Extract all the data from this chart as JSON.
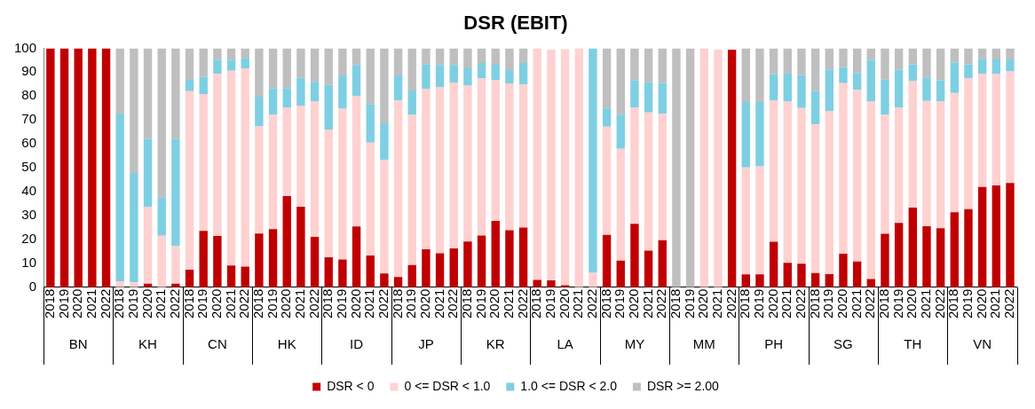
{
  "chart_data": {
    "type": "bar",
    "title": "DSR (EBIT)",
    "stacked": true,
    "legend": "bottom",
    "grid": false,
    "categories": [
      "2018",
      "2019",
      "2020",
      "2021",
      "2022",
      "2018",
      "2019",
      "2020",
      "2021",
      "2022",
      "2018",
      "2019",
      "2020",
      "2021",
      "2022",
      "2018",
      "2019",
      "2020",
      "2021",
      "2022",
      "2018",
      "2019",
      "2020",
      "2021",
      "2022",
      "2018",
      "2019",
      "2020",
      "2021",
      "2022",
      "2018",
      "2019",
      "2020",
      "2021",
      "2022",
      "2018",
      "2019",
      "2020",
      "2021",
      "2022",
      "2018",
      "2019",
      "2020",
      "2021",
      "2022",
      "2018",
      "2019",
      "2020",
      "2021",
      "2022",
      "2018",
      "2019",
      "2020",
      "2021",
      "2022",
      "2018",
      "2019",
      "2020",
      "2021",
      "2022",
      "2018",
      "2019",
      "2020",
      "2021",
      "2022",
      "2018",
      "2019",
      "2020",
      "2021",
      "2022"
    ],
    "annotations": [
      "BN",
      "KH",
      "CN",
      "HK",
      "ID",
      "JP",
      "KR",
      "LA",
      "MY",
      "MM",
      "PH",
      "SG",
      "TH",
      "VN"
    ],
    "ylim": [
      0,
      100
    ],
    "yticks": [
      0,
      10,
      20,
      30,
      40,
      50,
      60,
      70,
      80,
      90,
      100
    ],
    "series": [
      {
        "name": "DSR < 0",
        "color": "#c00000",
        "values": [
          100,
          100,
          100,
          100,
          100,
          0,
          0,
          1.4,
          0,
          1.4,
          7.3,
          23.5,
          21.4,
          9.1,
          8.6,
          22.4,
          24.3,
          38.1,
          33.7,
          21,
          12.5,
          11.6,
          25.4,
          13.2,
          5.7,
          4.2,
          9.2,
          15.8,
          14.2,
          16.2,
          19.1,
          21.6,
          27.7,
          23.8,
          24.9,
          3,
          2.8,
          0.8,
          0,
          0,
          21.9,
          11.1,
          26.5,
          15.3,
          19.6,
          0,
          0,
          0,
          0,
          99.4,
          5.3,
          5.3,
          19,
          10.2,
          9.8,
          5.9,
          5.4,
          14,
          10.7,
          3.4,
          22.3,
          26.9,
          33.3,
          25.5,
          24.7,
          31.3,
          32.6,
          41.9,
          42.6,
          43.6
        ]
      },
      {
        "name": "0 <= DSR < 1.0",
        "color": "#ffd1d1",
        "values": [
          0,
          0,
          0,
          0,
          0,
          2.5,
          2,
          32.3,
          21.5,
          15.7,
          74.7,
          57.3,
          67.9,
          81.5,
          83,
          44.9,
          47.8,
          37,
          42.3,
          56.7,
          53.5,
          63.1,
          54.7,
          47.3,
          47.5,
          73.9,
          62.9,
          67.2,
          69.4,
          69.5,
          65.3,
          65.7,
          59.1,
          61.5,
          59.9,
          97,
          96.6,
          98.8,
          100,
          6,
          45.3,
          46.8,
          48.7,
          57.8,
          53,
          0,
          0,
          100,
          99.4,
          0,
          44.8,
          45.3,
          59.2,
          67.5,
          65.2,
          62.2,
          68.4,
          71.4,
          71.8,
          74.3,
          49.8,
          48.2,
          52.9,
          52.5,
          53.2,
          50,
          54.8,
          47.5,
          46.6,
          46.7
        ]
      },
      {
        "name": "1.0 <= DSR < 2.0",
        "color": "#7ecfe3",
        "values": [
          0,
          0,
          0,
          0,
          0,
          70.2,
          45.8,
          28.4,
          16.2,
          44.9,
          4.8,
          7.2,
          5.9,
          4.6,
          4.4,
          12.4,
          11.2,
          8.2,
          11.7,
          8.2,
          18.7,
          13.9,
          12.9,
          16,
          15.4,
          10.5,
          10.2,
          10.2,
          9.4,
          7.3,
          7.2,
          6.5,
          6.3,
          5.6,
          9,
          0,
          0,
          0,
          0,
          94,
          7.6,
          14.3,
          11.3,
          12.7,
          12.9,
          0,
          0,
          0,
          0,
          0,
          27.4,
          26.9,
          11,
          11.7,
          13.7,
          13.9,
          17.3,
          6.7,
          7.2,
          17.5,
          14.8,
          15.9,
          7.1,
          9.8,
          8.7,
          12.8,
          5.9,
          6.2,
          6.1,
          5
        ]
      },
      {
        "name": "DSR >= 2.00",
        "color": "#bfbfbf",
        "values": [
          0,
          0,
          0,
          0,
          0,
          27.3,
          52.2,
          37.9,
          62.3,
          38,
          13.2,
          12,
          4.8,
          4.8,
          4,
          20.3,
          16.7,
          16.7,
          12.3,
          14.1,
          15.3,
          11.4,
          7,
          23.5,
          31.4,
          11.4,
          17.7,
          6.8,
          7,
          7,
          8.4,
          6.2,
          6.9,
          9.1,
          6.2,
          0,
          null,
          null,
          0,
          0,
          25.2,
          27.8,
          13.5,
          14.2,
          14.5,
          100,
          100,
          0,
          null,
          null,
          22.5,
          22.5,
          10.8,
          10.6,
          11.3,
          18,
          8.9,
          7.9,
          10.3,
          4.8,
          13.1,
          9,
          6.7,
          12.2,
          13.4,
          5.9,
          6.7,
          4.4,
          4.7,
          4.7
        ]
      }
    ]
  }
}
